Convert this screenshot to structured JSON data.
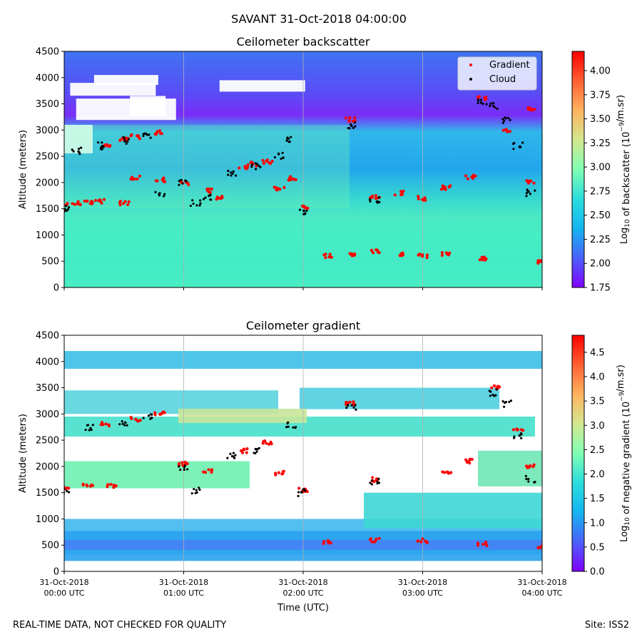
{
  "suptitle": "SAVANT 31-Oct-2018 04:00:00",
  "footer_left": "REAL-TIME DATA, NOT CHECKED FOR QUALITY",
  "footer_right": "Site: ISS2",
  "chart_data": [
    {
      "type": "heatmap",
      "title": "Ceilometer backscatter",
      "ylabel": "Altitude (meters)",
      "xlabel": "",
      "xlim": [
        "31-Oct-2018 00:00 UTC",
        "31-Oct-2018 04:00 UTC"
      ],
      "ylim": [
        0,
        4500
      ],
      "yticks": [
        0,
        500,
        1000,
        1500,
        2000,
        2500,
        3000,
        3500,
        4000,
        4500
      ],
      "grid": "vertical at hourly ticks",
      "colormap": "rainbow",
      "colorbar": {
        "label": "Log10 of backscatter (10^-9/m.sr)",
        "label_prefix": "Log",
        "label_sub": "10",
        "label_mid": " of backscatter (10",
        "label_sup": "−9",
        "label_suffix": "/m.sr)",
        "range": [
          1.75,
          4.2
        ],
        "ticks": [
          "1.75",
          "2.00",
          "2.25",
          "2.50",
          "2.75",
          "3.00",
          "3.25",
          "3.50",
          "3.75",
          "4.00"
        ]
      },
      "legend": {
        "placement": "top-right",
        "entries": [
          {
            "name": "Gradient",
            "color": "#ff0000"
          },
          {
            "name": "Cloud",
            "color": "#000000"
          }
        ]
      },
      "series": [
        {
          "name": "Gradient",
          "points": [
            [
              0.0,
              1580
            ],
            [
              0.1,
              1600
            ],
            [
              0.2,
              1630
            ],
            [
              0.3,
              1640
            ],
            [
              0.35,
              2700
            ],
            [
              0.5,
              2830
            ],
            [
              0.6,
              2870
            ],
            [
              0.8,
              2950
            ],
            [
              0.5,
              1610
            ],
            [
              0.6,
              2100
            ],
            [
              0.8,
              2050
            ],
            [
              1.0,
              2000
            ],
            [
              1.2,
              1850
            ],
            [
              1.3,
              1700
            ],
            [
              1.5,
              2300
            ],
            [
              1.6,
              2350
            ],
            [
              1.7,
              2400
            ],
            [
              1.8,
              1870
            ],
            [
              1.9,
              2080
            ],
            [
              2.0,
              1550
            ],
            [
              2.2,
              600
            ],
            [
              2.4,
              620
            ],
            [
              2.6,
              680
            ],
            [
              2.8,
              620
            ],
            [
              3.0,
              600
            ],
            [
              3.2,
              630
            ],
            [
              3.5,
              560
            ],
            [
              4.0,
              490
            ],
            [
              2.4,
              3200
            ],
            [
              2.6,
              1720
            ],
            [
              2.8,
              1800
            ],
            [
              3.0,
              1700
            ],
            [
              3.2,
              1900
            ],
            [
              3.4,
              2100
            ],
            [
              3.5,
              3600
            ],
            [
              3.7,
              3000
            ],
            [
              3.9,
              3400
            ],
            [
              3.9,
              2000
            ]
          ]
        },
        {
          "name": "Cloud",
          "points": [
            [
              0.0,
              1500
            ],
            [
              0.1,
              2600
            ],
            [
              0.3,
              2700
            ],
            [
              0.5,
              2800
            ],
            [
              0.7,
              2900
            ],
            [
              0.8,
              1800
            ],
            [
              1.0,
              2000
            ],
            [
              1.1,
              1600
            ],
            [
              1.2,
              1700
            ],
            [
              1.4,
              2200
            ],
            [
              1.6,
              2300
            ],
            [
              1.8,
              2500
            ],
            [
              1.9,
              2800
            ],
            [
              2.0,
              1450
            ],
            [
              2.4,
              3100
            ],
            [
              2.6,
              1650
            ],
            [
              3.5,
              3550
            ],
            [
              3.6,
              3450
            ],
            [
              3.7,
              3200
            ],
            [
              3.8,
              2700
            ],
            [
              3.9,
              1800
            ]
          ]
        }
      ]
    },
    {
      "type": "heatmap",
      "title": "Ceilometer gradient",
      "ylabel": "Altitude (meters)",
      "xlabel": "Time (UTC)",
      "xlim": [
        "31-Oct-2018 00:00 UTC",
        "31-Oct-2018 04:00 UTC"
      ],
      "ylim": [
        0,
        4500
      ],
      "yticks": [
        0,
        500,
        1000,
        1500,
        2000,
        2500,
        3000,
        3500,
        4000,
        4500
      ],
      "xticks": [
        {
          "date": "31-Oct-2018",
          "time": "00:00 UTC"
        },
        {
          "date": "31-Oct-2018",
          "time": "01:00 UTC"
        },
        {
          "date": "31-Oct-2018",
          "time": "02:00 UTC"
        },
        {
          "date": "31-Oct-2018",
          "time": "03:00 UTC"
        },
        {
          "date": "31-Oct-2018",
          "time": "04:00 UTC"
        }
      ],
      "grid": "vertical at hourly ticks",
      "colormap": "rainbow",
      "colorbar": {
        "label": "Log10 of negative gradient (10^-9/m.sr)",
        "label_prefix": "Log",
        "label_sub": "10",
        "label_mid": " of negative gradient (10",
        "label_sup": "−9",
        "label_suffix": "/m.sr)",
        "range": [
          0.0,
          4.85
        ],
        "ticks": [
          "0.0",
          "0.5",
          "1.0",
          "1.5",
          "2.0",
          "2.5",
          "3.0",
          "3.5",
          "4.0",
          "4.5"
        ]
      },
      "series": [
        {
          "name": "Gradient",
          "points": [
            [
              0.0,
              1600
            ],
            [
              0.2,
              1650
            ],
            [
              0.4,
              1620
            ],
            [
              0.35,
              2800
            ],
            [
              0.6,
              2900
            ],
            [
              0.8,
              3000
            ],
            [
              1.0,
              2050
            ],
            [
              1.2,
              1900
            ],
            [
              1.5,
              2300
            ],
            [
              1.7,
              2450
            ],
            [
              1.8,
              1870
            ],
            [
              2.0,
              1550
            ],
            [
              2.2,
              560
            ],
            [
              2.6,
              600
            ],
            [
              3.0,
              580
            ],
            [
              3.5,
              530
            ],
            [
              4.0,
              480
            ],
            [
              2.4,
              3200
            ],
            [
              2.6,
              1750
            ],
            [
              3.2,
              1900
            ],
            [
              3.4,
              2100
            ],
            [
              3.6,
              3500
            ],
            [
              3.8,
              2700
            ],
            [
              3.9,
              2000
            ]
          ]
        },
        {
          "name": "Cloud",
          "points": [
            [
              0.0,
              1500
            ],
            [
              0.2,
              2750
            ],
            [
              0.5,
              2850
            ],
            [
              0.7,
              2950
            ],
            [
              1.0,
              1950
            ],
            [
              1.1,
              1550
            ],
            [
              1.4,
              2200
            ],
            [
              1.6,
              2300
            ],
            [
              1.9,
              2800
            ],
            [
              2.0,
              1500
            ],
            [
              2.4,
              3150
            ],
            [
              2.6,
              1700
            ],
            [
              3.6,
              3400
            ],
            [
              3.7,
              3200
            ],
            [
              3.8,
              2600
            ],
            [
              3.9,
              1750
            ]
          ]
        }
      ]
    }
  ]
}
